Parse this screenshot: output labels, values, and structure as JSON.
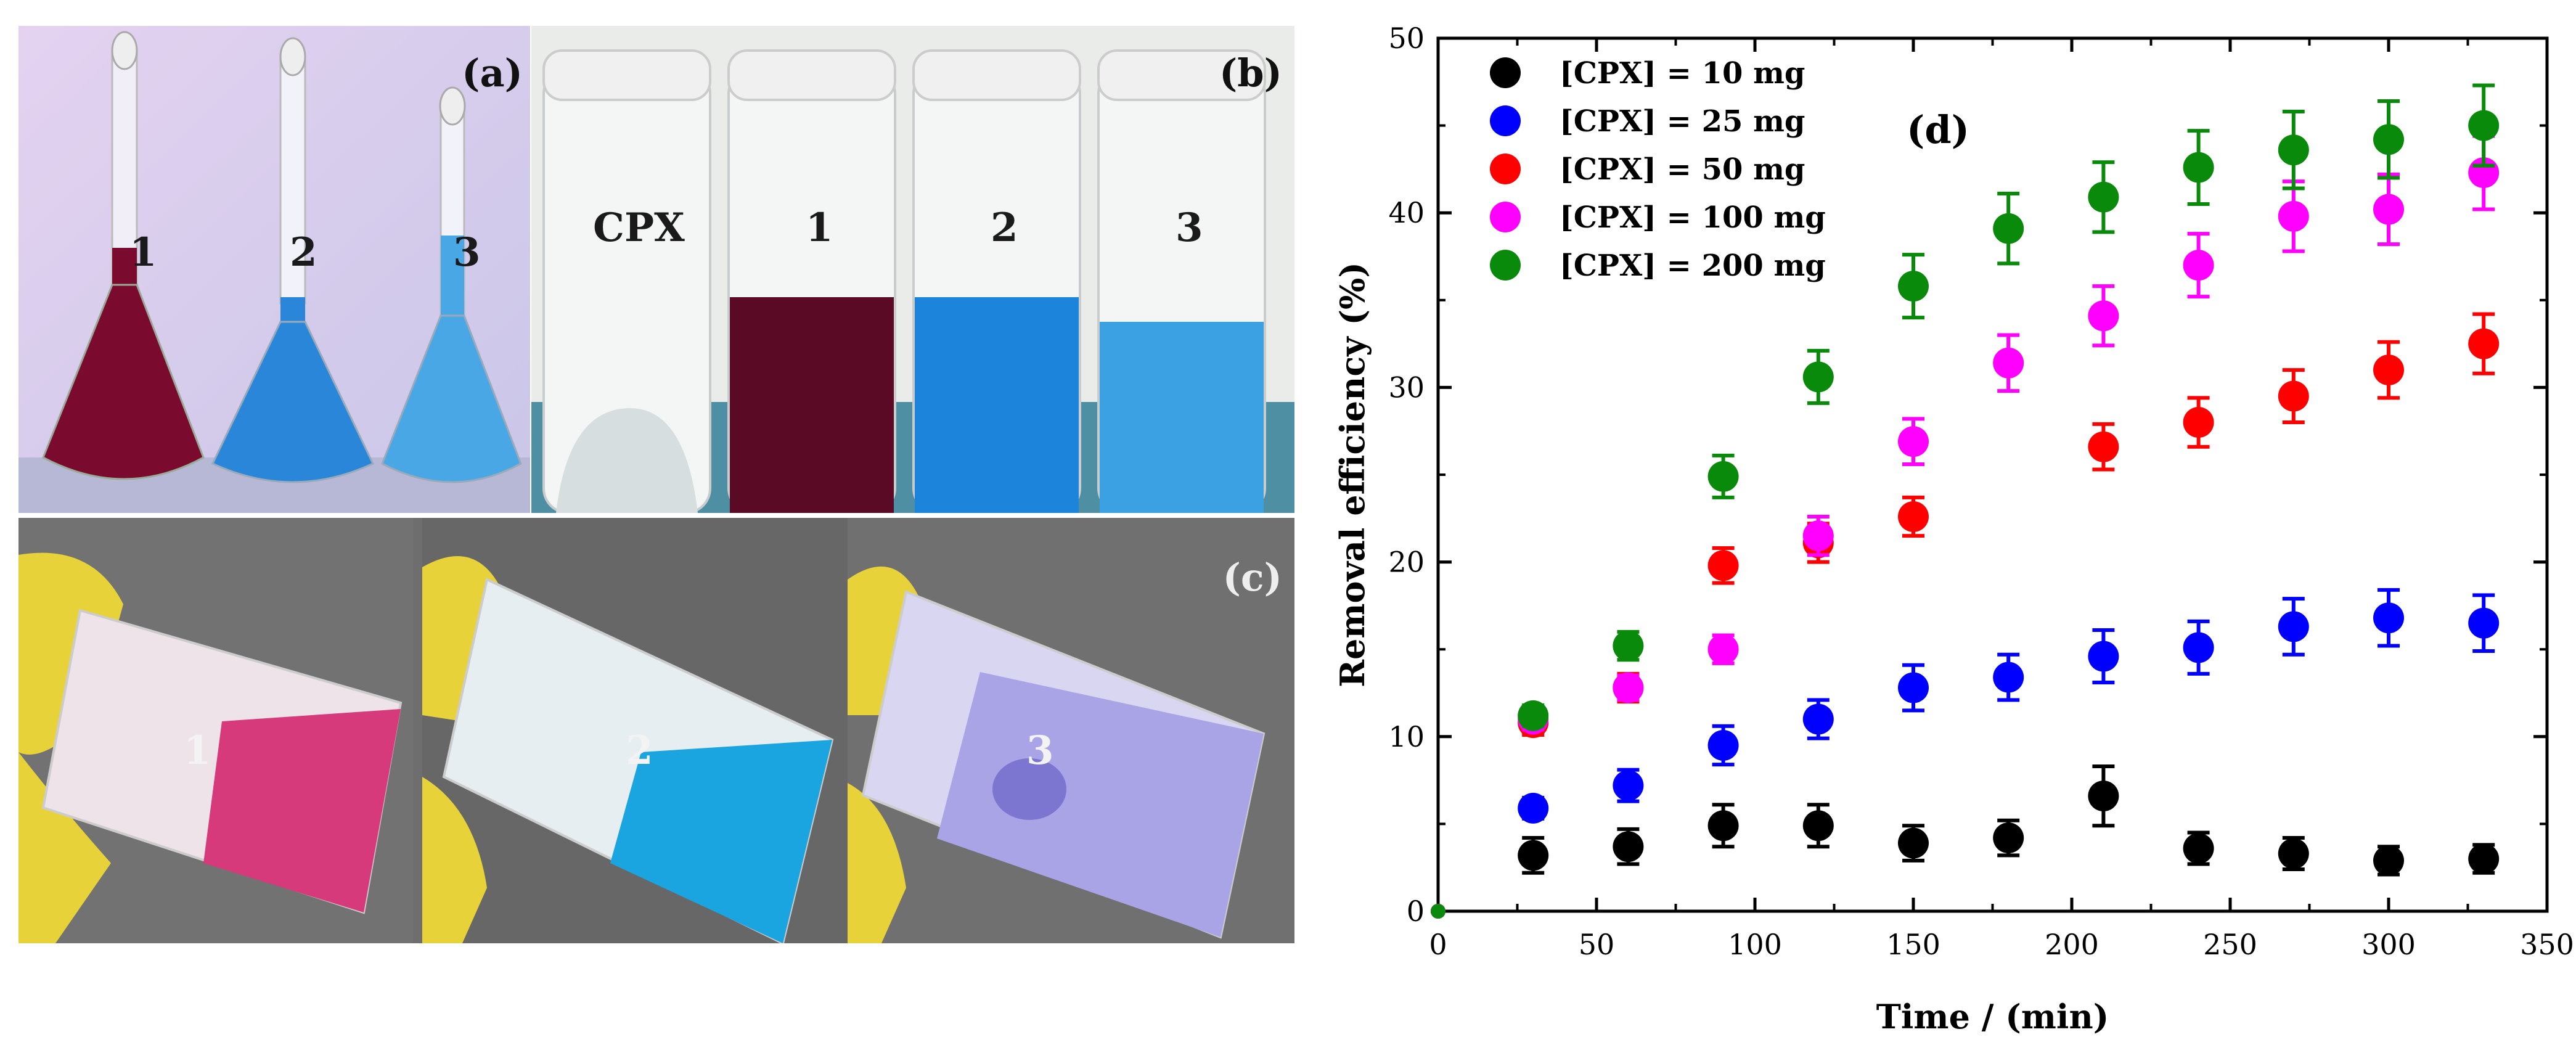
{
  "panel_a": {
    "label": "(a)",
    "flask_labels": [
      "1",
      "2",
      "3"
    ],
    "colors": {
      "bg": "#d9c8ea",
      "sol1": "#7a0a2e",
      "sol2": "#2a86d8",
      "sol3": "#4aa7e6"
    }
  },
  "panel_b": {
    "label": "(b)",
    "vial_labels": [
      "CPX",
      "1",
      "2",
      "3"
    ],
    "colors": {
      "bg": "#e9ece9",
      "sol1": "#5a0a24",
      "sol2": "#1d84dc",
      "sol3": "#3ba1e2"
    }
  },
  "panel_c": {
    "label": "(c)",
    "vial_labels": [
      "1",
      "2",
      "3"
    ],
    "colors": {
      "glove": "#e8d23a",
      "bg": "#6a6a6a",
      "sol1": "#d63a7a",
      "sol2": "#1aa4e0",
      "sol3": "#a9a4e6"
    }
  },
  "chart_data": {
    "type": "scatter",
    "panel_label": "(d)",
    "xlabel": "Time / (min)",
    "ylabel": "Removal efficiency (%)",
    "xlim": [
      0,
      350
    ],
    "ylim": [
      0,
      50
    ],
    "xticks": [
      0,
      50,
      100,
      150,
      200,
      250,
      300,
      350
    ],
    "yticks": [
      0,
      10,
      20,
      30,
      40,
      50
    ],
    "legend_position": "top-left",
    "grid": false,
    "x": [
      0,
      30,
      60,
      90,
      120,
      150,
      180,
      210,
      240,
      270,
      300,
      330
    ],
    "series": [
      {
        "name": "[CPX] = 10 mg",
        "color": "#000000",
        "y": [
          0,
          3.2,
          3.7,
          4.9,
          4.9,
          3.9,
          4.2,
          6.6,
          3.6,
          3.3,
          2.9,
          3.0
        ],
        "err": [
          0,
          1.0,
          1.0,
          1.2,
          1.2,
          1.0,
          1.0,
          1.7,
          0.9,
          0.9,
          0.8,
          0.8
        ]
      },
      {
        "name": "[CPX] = 25 mg",
        "color": "#0000ff",
        "y": [
          0,
          5.9,
          7.2,
          9.5,
          11.0,
          12.8,
          13.4,
          14.6,
          15.1,
          16.3,
          16.8,
          16.5
        ],
        "err": [
          0,
          0.6,
          0.9,
          1.1,
          1.1,
          1.3,
          1.3,
          1.5,
          1.5,
          1.6,
          1.6,
          1.6
        ]
      },
      {
        "name": "[CPX] = 50 mg",
        "color": "#ff0000",
        "y": [
          0,
          10.8,
          12.8,
          19.8,
          21.1,
          22.6,
          null,
          26.6,
          28.0,
          29.5,
          31.0,
          32.5
        ],
        "err": [
          0,
          0.7,
          0.8,
          1.0,
          1.1,
          1.1,
          null,
          1.3,
          1.4,
          1.5,
          1.6,
          1.7
        ]
      },
      {
        "name": "[CPX] = 100 mg",
        "color": "#ff00ff",
        "y": [
          0,
          11.0,
          12.8,
          15.0,
          21.5,
          26.9,
          31.4,
          34.1,
          37.0,
          39.8,
          40.2,
          42.3
        ],
        "err": [
          0,
          0.6,
          0.7,
          0.8,
          1.1,
          1.3,
          1.6,
          1.7,
          1.8,
          2.0,
          2.0,
          2.1
        ]
      },
      {
        "name": "[CPX] = 200 mg",
        "color": "#0a8a0a",
        "y": [
          0,
          11.2,
          15.2,
          24.9,
          30.6,
          35.8,
          39.1,
          40.9,
          42.6,
          43.6,
          44.2,
          45.0
        ],
        "err": [
          0,
          0.6,
          0.8,
          1.2,
          1.5,
          1.8,
          2.0,
          2.0,
          2.1,
          2.2,
          2.2,
          2.3
        ]
      }
    ]
  }
}
